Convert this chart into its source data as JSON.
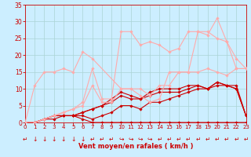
{
  "xlabel": "Vent moyen/en rafales ( km/h )",
  "ylim": [
    0,
    35
  ],
  "xlim": [
    0,
    23
  ],
  "yticks": [
    0,
    5,
    10,
    15,
    20,
    25,
    30,
    35
  ],
  "xticks": [
    0,
    1,
    2,
    3,
    4,
    5,
    6,
    7,
    8,
    9,
    10,
    11,
    12,
    13,
    14,
    15,
    16,
    17,
    18,
    19,
    20,
    21,
    22,
    23
  ],
  "bg_color": "#cceeff",
  "grid_color": "#aad4d4",
  "lines": [
    {
      "x": [
        0,
        1,
        2,
        3,
        4,
        5,
        6,
        7,
        8,
        9,
        10,
        11,
        12,
        13,
        14,
        15,
        16,
        17,
        18,
        19,
        20,
        21,
        22,
        23
      ],
      "y": [
        0,
        0,
        1,
        1,
        2,
        2,
        1,
        0,
        0,
        0,
        0,
        0,
        0,
        0,
        0,
        0,
        0,
        0,
        0,
        0,
        0,
        0,
        0,
        0
      ],
      "color": "#cc0000",
      "lw": 0.8,
      "marker": "D",
      "ms": 1.8,
      "alpha": 1.0
    },
    {
      "x": [
        0,
        1,
        2,
        3,
        4,
        5,
        6,
        7,
        8,
        9,
        10,
        11,
        12,
        13,
        14,
        15,
        16,
        17,
        18,
        19,
        20,
        21,
        22,
        23
      ],
      "y": [
        0,
        0,
        1,
        2,
        2,
        2,
        2,
        1,
        2,
        3,
        5,
        5,
        4,
        6,
        6,
        7,
        8,
        9,
        10,
        10,
        11,
        11,
        10,
        2
      ],
      "color": "#cc0000",
      "lw": 0.8,
      "marker": "D",
      "ms": 1.8,
      "alpha": 1.0
    },
    {
      "x": [
        0,
        1,
        2,
        3,
        4,
        5,
        6,
        7,
        8,
        9,
        10,
        11,
        12,
        13,
        14,
        15,
        16,
        17,
        18,
        19,
        20,
        21,
        22,
        23
      ],
      "y": [
        0,
        0,
        1,
        2,
        2,
        2,
        3,
        4,
        5,
        6,
        8,
        7,
        7,
        8,
        9,
        9,
        9,
        10,
        11,
        10,
        12,
        11,
        10,
        2
      ],
      "color": "#cc0000",
      "lw": 0.8,
      "marker": "D",
      "ms": 1.8,
      "alpha": 1.0
    },
    {
      "x": [
        0,
        1,
        2,
        3,
        4,
        5,
        6,
        7,
        8,
        9,
        10,
        11,
        12,
        13,
        14,
        15,
        16,
        17,
        18,
        19,
        20,
        21,
        22,
        23
      ],
      "y": [
        0,
        0,
        1,
        2,
        2,
        2,
        3,
        4,
        5,
        7,
        9,
        8,
        7,
        9,
        10,
        10,
        10,
        11,
        11,
        10,
        12,
        11,
        11,
        2
      ],
      "color": "#cc0000",
      "lw": 0.8,
      "marker": "D",
      "ms": 1.8,
      "alpha": 1.0
    },
    {
      "x": [
        0,
        1,
        2,
        3,
        4,
        5,
        6,
        7,
        10,
        11,
        12,
        13,
        14,
        15,
        16,
        17,
        18,
        19,
        20,
        21,
        22,
        23
      ],
      "y": [
        0,
        11,
        15,
        15,
        16,
        15,
        21,
        19,
        10,
        10,
        8,
        6,
        7,
        15,
        15,
        15,
        15,
        16,
        15,
        14,
        16,
        16
      ],
      "color": "#ffaaaa",
      "lw": 0.8,
      "marker": "D",
      "ms": 1.8,
      "alpha": 1.0
    },
    {
      "x": [
        0,
        1,
        2,
        3,
        4,
        5,
        6,
        7,
        8,
        9,
        10,
        11,
        12,
        13,
        14,
        15,
        16,
        17,
        18,
        19,
        20,
        21,
        22,
        23
      ],
      "y": [
        0,
        0,
        1,
        2,
        3,
        4,
        5,
        11,
        6,
        6,
        10,
        10,
        10,
        8,
        11,
        11,
        15,
        15,
        27,
        27,
        25,
        24,
        16,
        16
      ],
      "color": "#ffaaaa",
      "lw": 0.8,
      "marker": "D",
      "ms": 1.8,
      "alpha": 1.0
    },
    {
      "x": [
        0,
        1,
        2,
        3,
        4,
        5,
        6,
        7,
        8,
        9,
        10,
        11,
        12,
        13,
        14,
        15,
        16,
        17,
        18,
        19,
        20,
        21,
        22,
        23
      ],
      "y": [
        0,
        0,
        1,
        2,
        3,
        4,
        6,
        16,
        7,
        7,
        27,
        27,
        23,
        24,
        23,
        21,
        22,
        27,
        27,
        26,
        31,
        24,
        19,
        16
      ],
      "color": "#ffaaaa",
      "lw": 0.8,
      "marker": "D",
      "ms": 1.8,
      "alpha": 1.0
    }
  ],
  "tick_color": "#cc0000",
  "label_color": "#cc0000",
  "xlabel_fontsize": 6.0,
  "ytick_fontsize": 5.5,
  "xtick_fontsize": 5.0
}
